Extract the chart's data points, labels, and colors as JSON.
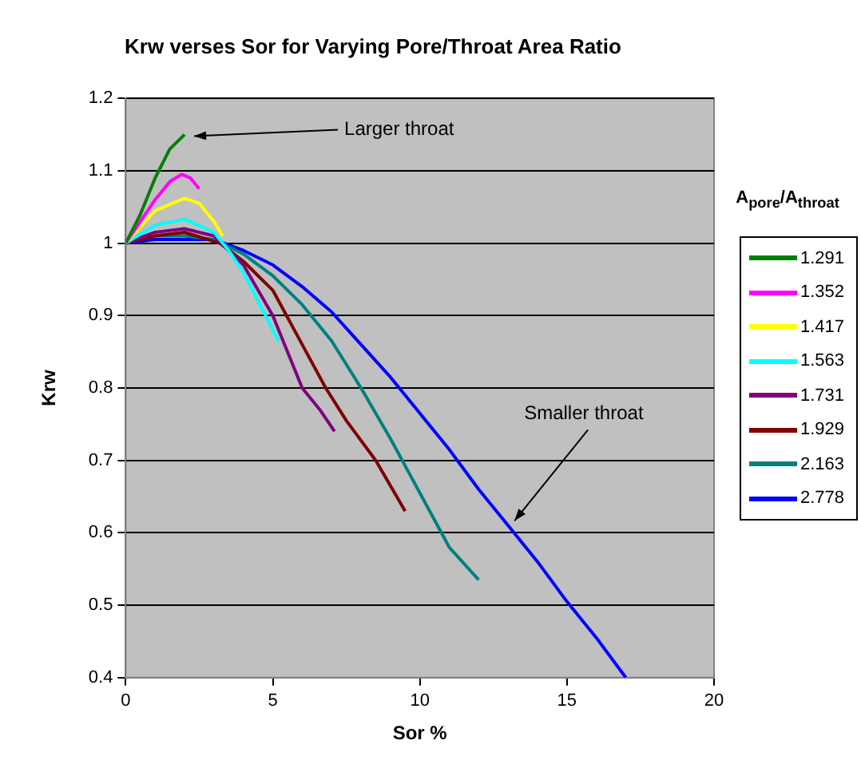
{
  "chart_data": {
    "type": "line",
    "title": "Krw verses Sor for Varying Pore/Throat Area Ratio",
    "xlabel": "Sor %",
    "ylabel": "Krw",
    "legend_title": "A$_{pore}$/A$_{throat}$",
    "xlim": [
      0,
      20
    ],
    "xticks": [
      0,
      5,
      10,
      15,
      20
    ],
    "ylim": [
      0.4,
      1.2
    ],
    "yticks": [
      0.4,
      0.5,
      0.6,
      0.7,
      0.8,
      0.9,
      1,
      1.1,
      1.2
    ],
    "grid": "y",
    "legend": "right",
    "marker": "none",
    "annotations": [
      {
        "text": "Larger throat",
        "x": 2,
        "y": 1.15
      },
      {
        "text": "Smaller throat",
        "x": 13,
        "y": 0.61
      }
    ],
    "series": [
      {
        "name": "1.291",
        "color": "#008000",
        "x": [
          0,
          0.5,
          1,
          1.5,
          2
        ],
        "values": [
          1,
          1.04,
          1.09,
          1.13,
          1.15
        ]
      },
      {
        "name": "1.352",
        "color": "#ff00ff",
        "x": [
          0,
          0.5,
          1,
          1.5,
          1.9,
          2.2,
          2.5
        ],
        "values": [
          1,
          1.03,
          1.06,
          1.085,
          1.095,
          1.09,
          1.075
        ]
      },
      {
        "name": "1.417",
        "color": "#ffff00",
        "x": [
          0,
          1,
          2,
          2.5,
          3,
          3.3
        ],
        "values": [
          1,
          1.045,
          1.062,
          1.055,
          1.03,
          1.01
        ]
      },
      {
        "name": "1.563",
        "color": "#00ffff",
        "x": [
          0,
          1,
          2,
          3,
          3.5,
          4,
          4.5,
          5.2
        ],
        "values": [
          1,
          1.025,
          1.033,
          1.015,
          0.99,
          0.96,
          0.92,
          0.865
        ]
      },
      {
        "name": "1.731",
        "color": "#800080",
        "x": [
          0,
          1,
          2,
          3,
          4,
          5,
          6,
          6.6,
          7.1
        ],
        "values": [
          1,
          1.015,
          1.02,
          1.01,
          0.97,
          0.9,
          0.8,
          0.77,
          0.74
        ]
      },
      {
        "name": "1.929",
        "color": "#800000",
        "x": [
          0,
          1,
          2,
          3.2,
          4,
          5,
          6,
          6.8,
          7.5,
          8.5,
          9.5
        ],
        "values": [
          1,
          1.01,
          1.015,
          1,
          0.975,
          0.935,
          0.86,
          0.8,
          0.755,
          0.7,
          0.63
        ]
      },
      {
        "name": "2.163",
        "color": "#008080",
        "x": [
          0,
          1,
          2,
          3,
          4,
          5,
          6,
          7,
          8,
          9,
          10,
          11,
          12
        ],
        "values": [
          1,
          1.01,
          1.01,
          1.005,
          0.985,
          0.955,
          0.915,
          0.865,
          0.8,
          0.73,
          0.655,
          0.58,
          0.535
        ]
      },
      {
        "name": "2.778",
        "color": "#0000ff",
        "x": [
          0,
          1,
          2,
          3,
          4,
          5,
          6,
          7,
          8,
          9,
          10,
          11,
          12,
          13,
          14,
          15,
          16,
          17
        ],
        "values": [
          1,
          1.005,
          1.005,
          1.005,
          0.99,
          0.97,
          0.94,
          0.905,
          0.86,
          0.815,
          0.765,
          0.715,
          0.66,
          0.61,
          0.56,
          0.505,
          0.455,
          0.4
        ]
      }
    ]
  }
}
